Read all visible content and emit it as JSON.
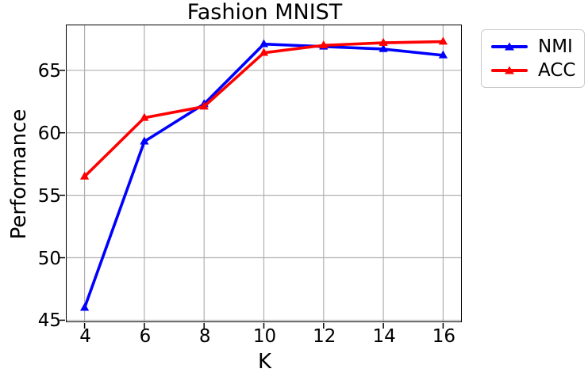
{
  "chart_data": {
    "type": "line",
    "title": "Fashion MNIST",
    "xlabel": "K",
    "ylabel": "Performance",
    "x": [
      4,
      6,
      8,
      10,
      12,
      14,
      16
    ],
    "series": [
      {
        "name": "NMI",
        "color": "#0000ff",
        "values": [
          46.0,
          59.3,
          62.3,
          67.1,
          66.9,
          66.7,
          66.2
        ]
      },
      {
        "name": "ACC",
        "color": "#ff0000",
        "values": [
          56.5,
          61.2,
          62.1,
          66.4,
          67.0,
          67.2,
          67.3
        ]
      }
    ],
    "x_ticks": [
      4,
      6,
      8,
      10,
      12,
      14,
      16
    ],
    "y_ticks": [
      45,
      50,
      55,
      60,
      65
    ],
    "xlim": [
      3.4,
      16.6
    ],
    "ylim": [
      44.9,
      68.6
    ],
    "grid": true,
    "grid_color": "#b0b0b0",
    "axis_color": "#000000",
    "background_color": "#ffffff",
    "legend_position": "outside-top-right",
    "marker": "triangle-up",
    "line_width": 3.6
  }
}
